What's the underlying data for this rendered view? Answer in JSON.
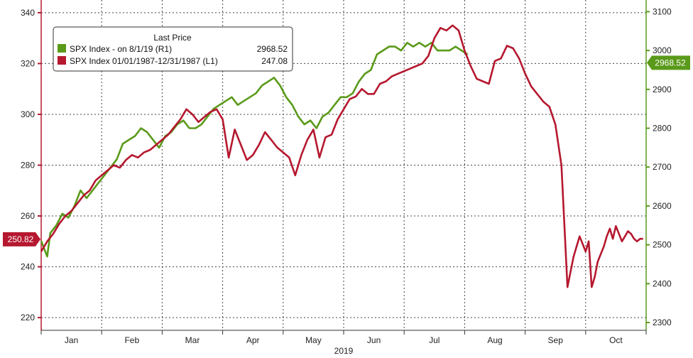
{
  "chart_data": {
    "type": "line",
    "legend": {
      "header": "Last Price",
      "entries": [
        {
          "label": "SPX Index - on 8/1/19  (R1)",
          "value": "2968.52",
          "color": "#5a9a1a"
        },
        {
          "label": "SPX Index 01/01/1987-12/31/1987  (L1)",
          "value": "247.08",
          "color": "#b5182f"
        }
      ],
      "placement": "top-left"
    },
    "left_axis": {
      "ylim": [
        215,
        345
      ],
      "ticks": [
        220,
        240,
        260,
        280,
        300,
        320,
        340
      ],
      "badge": "250.82",
      "color": "#b5182f"
    },
    "right_axis": {
      "ylim": [
        2280,
        3130
      ],
      "ticks": [
        2300,
        2400,
        2500,
        2600,
        2700,
        2800,
        2900,
        3000,
        3100
      ],
      "badge": "2968.52",
      "color": "#5a9a1a"
    },
    "x_axis": {
      "months": [
        "Jan",
        "Feb",
        "Mar",
        "Apr",
        "May",
        "Jun",
        "Jul",
        "Aug",
        "Sep",
        "Oct"
      ],
      "year_label": "2019",
      "xlim": [
        0,
        10
      ]
    },
    "grid": true,
    "series": [
      {
        "name": "SPX Index - on 8/1/19",
        "axis": "right",
        "color": "#5a9a1a",
        "x": [
          0,
          0.1,
          0.15,
          0.25,
          0.35,
          0.45,
          0.55,
          0.65,
          0.75,
          0.85,
          0.95,
          1.05,
          1.15,
          1.25,
          1.35,
          1.45,
          1.55,
          1.65,
          1.75,
          1.85,
          1.95,
          2.05,
          2.15,
          2.25,
          2.35,
          2.45,
          2.55,
          2.65,
          2.75,
          2.85,
          2.95,
          3.05,
          3.15,
          3.25,
          3.35,
          3.45,
          3.55,
          3.65,
          3.75,
          3.85,
          3.95,
          4.05,
          4.15,
          4.25,
          4.35,
          4.45,
          4.55,
          4.65,
          4.75,
          4.85,
          4.95,
          5.05,
          5.15,
          5.25,
          5.35,
          5.45,
          5.55,
          5.65,
          5.75,
          5.85,
          5.95,
          6.05,
          6.15,
          6.25,
          6.35,
          6.45,
          6.55,
          6.65,
          6.75,
          6.85,
          6.95,
          7.05
        ],
        "y": [
          2510,
          2470,
          2530,
          2550,
          2580,
          2570,
          2600,
          2640,
          2620,
          2640,
          2660,
          2680,
          2700,
          2720,
          2760,
          2770,
          2780,
          2800,
          2790,
          2770,
          2750,
          2780,
          2790,
          2810,
          2820,
          2800,
          2800,
          2810,
          2830,
          2850,
          2860,
          2870,
          2880,
          2860,
          2870,
          2880,
          2890,
          2910,
          2920,
          2930,
          2910,
          2880,
          2860,
          2830,
          2810,
          2820,
          2800,
          2830,
          2840,
          2860,
          2880,
          2880,
          2890,
          2920,
          2940,
          2950,
          2990,
          3000,
          3010,
          3010,
          3000,
          3020,
          3010,
          3020,
          3010,
          3020,
          3000,
          3000,
          3000,
          3010,
          3000,
          2990
        ]
      },
      {
        "name": "SPX Index 01/01/1987-12/31/1987",
        "axis": "left",
        "color": "#b5182f",
        "x": [
          0,
          0.1,
          0.2,
          0.3,
          0.4,
          0.5,
          0.6,
          0.7,
          0.8,
          0.9,
          1.0,
          1.1,
          1.2,
          1.3,
          1.4,
          1.5,
          1.6,
          1.7,
          1.8,
          1.9,
          2.0,
          2.1,
          2.2,
          2.3,
          2.4,
          2.5,
          2.6,
          2.7,
          2.8,
          2.9,
          3.0,
          3.1,
          3.2,
          3.3,
          3.4,
          3.5,
          3.6,
          3.7,
          3.8,
          3.9,
          4.0,
          4.1,
          4.2,
          4.3,
          4.4,
          4.5,
          4.6,
          4.7,
          4.8,
          4.9,
          5.0,
          5.1,
          5.2,
          5.3,
          5.4,
          5.5,
          5.6,
          5.7,
          5.8,
          5.9,
          6.0,
          6.1,
          6.2,
          6.3,
          6.4,
          6.5,
          6.6,
          6.7,
          6.8,
          6.9,
          7.0,
          7.1,
          7.2,
          7.3,
          7.4,
          7.5,
          7.6,
          7.7,
          7.8,
          7.9,
          8.0,
          8.1,
          8.2,
          8.3,
          8.4,
          8.5,
          8.6,
          8.7,
          8.8,
          8.9,
          9.0,
          9.05,
          9.1,
          9.15,
          9.2,
          9.25,
          9.3,
          9.35,
          9.4,
          9.45,
          9.5,
          9.55,
          9.6,
          9.65,
          9.7,
          9.75,
          9.8,
          9.85,
          9.9,
          9.95
        ],
        "y": [
          246,
          250,
          253,
          257,
          260,
          262,
          265,
          268,
          270,
          274,
          276,
          278,
          280,
          279,
          282,
          284,
          283,
          285,
          286,
          288,
          290,
          292,
          295,
          298,
          302,
          300,
          297,
          299,
          301,
          302,
          298,
          283,
          294,
          288,
          282,
          284,
          288,
          293,
          290,
          287,
          285,
          283,
          276,
          284,
          290,
          294,
          283,
          291,
          292,
          298,
          302,
          306,
          307,
          310,
          308,
          308,
          312,
          313,
          315,
          316,
          317,
          318,
          319,
          320,
          323,
          330,
          334,
          333,
          335,
          333,
          325,
          319,
          314,
          313,
          312,
          321,
          322,
          327,
          326,
          322,
          316,
          311,
          308,
          305,
          303,
          296,
          280,
          232,
          244,
          252,
          246,
          250,
          232,
          236,
          242,
          245,
          248,
          252,
          255,
          251,
          256,
          253,
          250,
          252,
          254,
          253,
          251,
          250,
          251,
          251
        ]
      }
    ]
  }
}
